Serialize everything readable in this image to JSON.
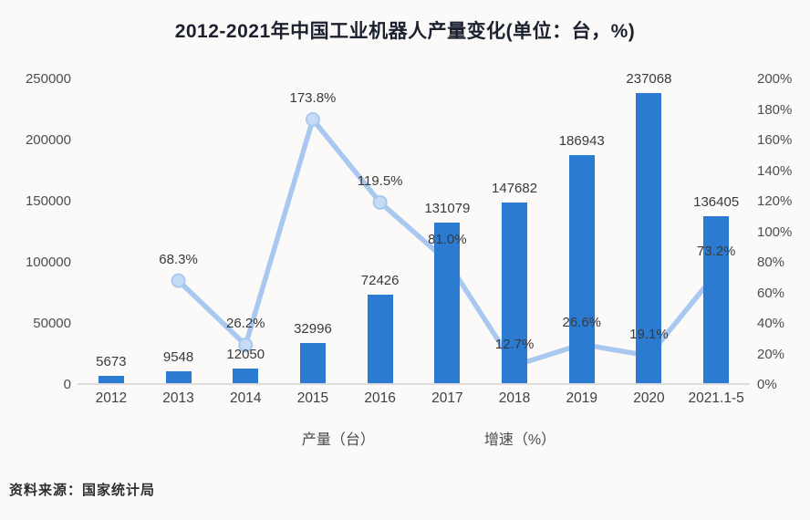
{
  "title": "2012-2021年中国工业机器人产量变化(单位：台，%)",
  "source": "资料来源：国家统计局",
  "colors": {
    "bar": "#2b7bd3",
    "line": "#a8c8ef",
    "marker_fill": "#c6dcf6",
    "background": "#fbfaf9",
    "axis_text": "#4d4d4d",
    "label_text": "#3a3a3a"
  },
  "legend": {
    "bar_label": "产量（台）",
    "line_label": "增速（%）"
  },
  "chart_data": {
    "type": "bar",
    "subtype": "bar+line combo",
    "title": "2012-2021年中国工业机器人产量变化(单位：台，%)",
    "categories": [
      "2012",
      "2013",
      "2014",
      "2015",
      "2016",
      "2017",
      "2018",
      "2019",
      "2020",
      "2021.1-5"
    ],
    "series": [
      {
        "name": "产量（台）",
        "type": "bar",
        "axis": "left",
        "values": [
          5673,
          9548,
          12050,
          32996,
          72426,
          131079,
          147682,
          186943,
          237068,
          136405
        ],
        "labels": [
          "5673",
          "9548",
          "12050",
          "32996",
          "72426",
          "131079",
          "147682",
          "186943",
          "237068",
          "136405"
        ]
      },
      {
        "name": "增速（%）",
        "type": "line",
        "axis": "right",
        "values": [
          null,
          68.3,
          26.2,
          173.8,
          119.5,
          81.0,
          12.7,
          26.6,
          19.1,
          73.2
        ],
        "labels": [
          null,
          "68.3%",
          "26.2%",
          "173.8%",
          "119.5%",
          "81.0%",
          "12.7%",
          "26.6%",
          "19.1%",
          "73.2%"
        ]
      }
    ],
    "left_axis": {
      "min": 0,
      "max": 250000,
      "step": 50000,
      "ticks": [
        "0",
        "50000",
        "100000",
        "150000",
        "200000",
        "250000"
      ]
    },
    "right_axis": {
      "min": 0,
      "max": 200,
      "step": 20,
      "ticks": [
        "0%",
        "20%",
        "40%",
        "60%",
        "80%",
        "100%",
        "120%",
        "140%",
        "160%",
        "180%",
        "200%"
      ]
    },
    "grid": false,
    "legend_position": "bottom"
  }
}
